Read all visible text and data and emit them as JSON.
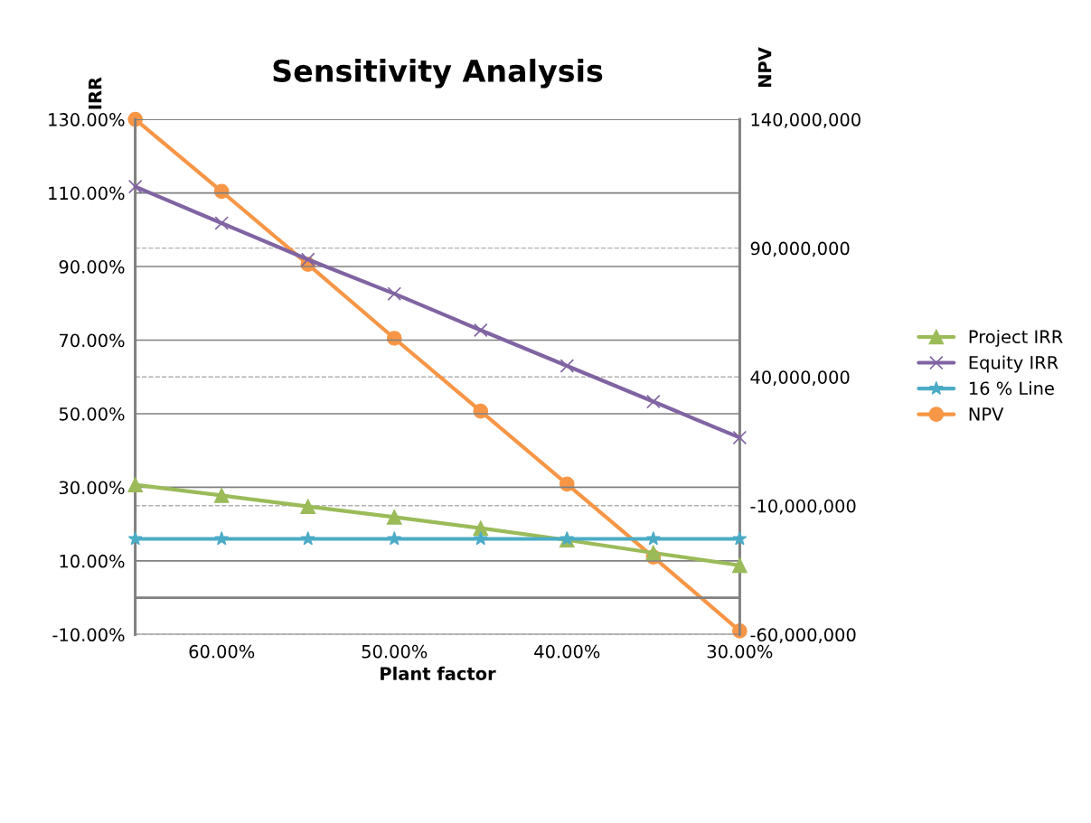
{
  "chart_data": {
    "type": "line",
    "title": "Sensitivity Analysis",
    "xlabel": "Plant factor",
    "ylabel": "IRR",
    "y2label": "NPV",
    "x": [
      65,
      60,
      55,
      50,
      45,
      40,
      35,
      30
    ],
    "xlim": [
      65,
      30
    ],
    "xticks": [
      {
        "value": 60,
        "label": "60.00%"
      },
      {
        "value": 50,
        "label": "50.00%"
      },
      {
        "value": 40,
        "label": "40.00%"
      },
      {
        "value": 30,
        "label": "30.00%"
      }
    ],
    "ylim": [
      -10,
      130
    ],
    "yticks": [
      {
        "value": -10,
        "label": "-10.00%"
      },
      {
        "value": 10,
        "label": "10.00%"
      },
      {
        "value": 30,
        "label": "30.00%"
      },
      {
        "value": 50,
        "label": "50.00%"
      },
      {
        "value": 70,
        "label": "70.00%"
      },
      {
        "value": 90,
        "label": "90.00%"
      },
      {
        "value": 110,
        "label": "110.00%"
      },
      {
        "value": 130,
        "label": "130.00%"
      }
    ],
    "y2lim": [
      -60000000,
      140000000
    ],
    "y2ticks": [
      {
        "value": -60000000,
        "label": "-60,000,000"
      },
      {
        "value": -10000000,
        "label": "-10,000,000"
      },
      {
        "value": 40000000,
        "label": "40,000,000"
      },
      {
        "value": 90000000,
        "label": "90,000,000"
      },
      {
        "value": 140000000,
        "label": "140,000,000"
      }
    ],
    "series": [
      {
        "name": "Project IRR",
        "color": "#9bbb59",
        "marker": "triangle",
        "values": [
          30.7,
          27.8,
          24.8,
          21.9,
          18.9,
          15.7,
          12.2,
          8.8
        ]
      },
      {
        "name": "Equity IRR",
        "color": "#8064a2",
        "marker": "cross",
        "values": [
          111.7,
          101.8,
          91.9,
          82.6,
          72.7,
          63.0,
          53.3,
          43.5
        ]
      },
      {
        "name": "16 % Line",
        "color": "#4bacc6",
        "marker": "star",
        "values": [
          16,
          16,
          16,
          16,
          16,
          16,
          16,
          16
        ]
      },
      {
        "name": "NPV",
        "color": "#f79646",
        "marker": "circle",
        "axis": "y2",
        "values": [
          140000000,
          112000000,
          83700000,
          55000000,
          26700000,
          -1600000,
          -29900000,
          -58600000
        ]
      }
    ],
    "ref_lines": [
      {
        "axis": "y",
        "value": 0,
        "color": "#808080"
      }
    ],
    "grid": "y",
    "legend": "right",
    "line_style": "solid"
  }
}
